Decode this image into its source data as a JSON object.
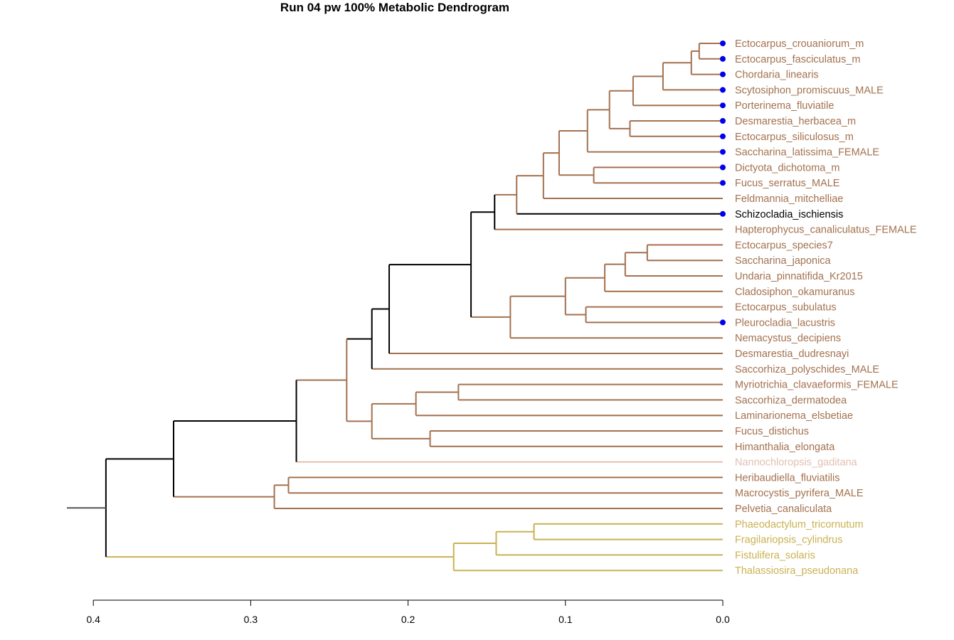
{
  "title": "Run 04 pw 100%  Metabolic Dendrogram",
  "colors": {
    "default": "#a3714f",
    "backbone": "#000000",
    "diatom": "#c9b253",
    "nanno": "#e3bfb1",
    "marker": "#0000ee"
  },
  "axis": {
    "ticks": [
      {
        "value": 0.4,
        "label": "0.4"
      },
      {
        "value": 0.3,
        "label": "0.3"
      },
      {
        "value": 0.2,
        "label": "0.2"
      },
      {
        "value": 0.1,
        "label": "0.1"
      },
      {
        "value": 0.0,
        "label": "0.0"
      }
    ]
  },
  "leaves": [
    {
      "label": "Ectocarpus_crouaniorum_m",
      "color": "default",
      "marker": true
    },
    {
      "label": "Ectocarpus_fasciculatus_m",
      "color": "default",
      "marker": true
    },
    {
      "label": "Chordaria_linearis",
      "color": "default",
      "marker": true
    },
    {
      "label": "Scytosiphon_promiscuus_MALE",
      "color": "default",
      "marker": true
    },
    {
      "label": "Porterinema_fluviatile",
      "color": "default",
      "marker": true
    },
    {
      "label": "Desmarestia_herbacea_m",
      "color": "default",
      "marker": true
    },
    {
      "label": "Ectocarpus_siliculosus_m",
      "color": "default",
      "marker": true
    },
    {
      "label": "Saccharina_latissima_FEMALE",
      "color": "default",
      "marker": true
    },
    {
      "label": "Dictyota_dichotoma_m",
      "color": "default",
      "marker": true
    },
    {
      "label": "Fucus_serratus_MALE",
      "color": "default",
      "marker": true
    },
    {
      "label": "Feldmannia_mitchelliae",
      "color": "default",
      "marker": false
    },
    {
      "label": "Schizocladia_ischiensis",
      "color": "backbone",
      "marker": true
    },
    {
      "label": "Hapterophycus_canaliculatus_FEMALE",
      "color": "default",
      "marker": false
    },
    {
      "label": "Ectocarpus_species7",
      "color": "default",
      "marker": false
    },
    {
      "label": "Saccharina_japonica",
      "color": "default",
      "marker": false
    },
    {
      "label": "Undaria_pinnatifida_Kr2015",
      "color": "default",
      "marker": false
    },
    {
      "label": "Cladosiphon_okamuranus",
      "color": "default",
      "marker": false
    },
    {
      "label": "Ectocarpus_subulatus",
      "color": "default",
      "marker": false
    },
    {
      "label": "Pleurocladia_lacustris",
      "color": "default",
      "marker": true
    },
    {
      "label": "Nemacystus_decipiens",
      "color": "default",
      "marker": false
    },
    {
      "label": "Desmarestia_dudresnayi",
      "color": "default",
      "marker": false
    },
    {
      "label": "Saccorhiza_polyschides_MALE",
      "color": "default",
      "marker": false
    },
    {
      "label": "Myriotrichia_clavaeformis_FEMALE",
      "color": "default",
      "marker": false
    },
    {
      "label": "Saccorhiza_dermatodea",
      "color": "default",
      "marker": false
    },
    {
      "label": "Laminarionema_elsbetiae",
      "color": "default",
      "marker": false
    },
    {
      "label": "Fucus_distichus",
      "color": "default",
      "marker": false
    },
    {
      "label": "Himanthalia_elongata",
      "color": "default",
      "marker": false
    },
    {
      "label": "Nannochloropsis_gaditana",
      "color": "nanno",
      "marker": false
    },
    {
      "label": "Heribaudiella_fluviatilis",
      "color": "default",
      "marker": false
    },
    {
      "label": "Macrocystis_pyrifera_MALE",
      "color": "default",
      "marker": false
    },
    {
      "label": "Pelvetia_canaliculata",
      "color": "default",
      "marker": false
    },
    {
      "label": "Phaeodactylum_tricornutum",
      "color": "diatom",
      "marker": false
    },
    {
      "label": "Fragilariopsis_cylindrus",
      "color": "diatom",
      "marker": false
    },
    {
      "label": "Fistulifera_solaris",
      "color": "diatom",
      "marker": false
    },
    {
      "label": "Thalassiosira_pseudonana",
      "color": "diatom",
      "marker": false
    }
  ],
  "tree": {
    "h": 0.392,
    "color": "backbone",
    "children": [
      {
        "h": 0.349,
        "color": "backbone",
        "children": [
          {
            "h": 0.271,
            "color": "backbone",
            "children": [
              {
                "h": 0.239,
                "color": "default",
                "children": [
                  {
                    "h": 0.223,
                    "color": "backbone",
                    "children": [
                      {
                        "h": 0.212,
                        "color": "backbone",
                        "children": [
                          {
                            "h": 0.16,
                            "color": "backbone",
                            "children": [
                              {
                                "h": 0.145,
                                "color": "backbone",
                                "children": [
                                  {
                                    "h": 0.131,
                                    "color": "default",
                                    "children": [
                                      {
                                        "h": 0.114,
                                        "color": "default",
                                        "children": [
                                          {
                                            "h": 0.104,
                                            "color": "default",
                                            "children": [
                                              {
                                                "h": 0.086,
                                                "color": "default",
                                                "children": [
                                                  {
                                                    "h": 0.072,
                                                    "color": "default",
                                                    "children": [
                                                      {
                                                        "h": 0.057,
                                                        "color": "default",
                                                        "children": [
                                                          {
                                                            "h": 0.038,
                                                            "color": "default",
                                                            "children": [
                                                              {
                                                                "h": 0.02,
                                                                "color": "default",
                                                                "children": [
                                                                  {
                                                                    "h": 0.015,
                                                                    "color": "default",
                                                                    "children": [
                                                                      {
                                                                        "leaf": 0
                                                                      },
                                                                      {
                                                                        "leaf": 1
                                                                      }
                                                                    ]
                                                                  },
                                                                  {
                                                                    "leaf": 2
                                                                  }
                                                                ]
                                                              },
                                                              {
                                                                "leaf": 3
                                                              }
                                                            ]
                                                          },
                                                          {
                                                            "leaf": 4
                                                          }
                                                        ]
                                                      },
                                                      {
                                                        "h": 0.059,
                                                        "color": "default",
                                                        "children": [
                                                          {
                                                            "leaf": 5
                                                          },
                                                          {
                                                            "leaf": 6
                                                          }
                                                        ]
                                                      }
                                                    ]
                                                  },
                                                  {
                                                    "leaf": 7
                                                  }
                                                ]
                                              },
                                              {
                                                "h": 0.082,
                                                "color": "default",
                                                "children": [
                                                  {
                                                    "leaf": 8
                                                  },
                                                  {
                                                    "leaf": 9
                                                  }
                                                ]
                                              }
                                            ]
                                          },
                                          {
                                            "leaf": 10
                                          }
                                        ]
                                      },
                                      {
                                        "leaf": 11
                                      }
                                    ]
                                  },
                                  {
                                    "leaf": 12
                                  }
                                ]
                              },
                              {
                                "h": 0.135,
                                "color": "default",
                                "children": [
                                  {
                                    "h": 0.1,
                                    "color": "default",
                                    "children": [
                                      {
                                        "h": 0.075,
                                        "color": "default",
                                        "children": [
                                          {
                                            "h": 0.062,
                                            "color": "default",
                                            "children": [
                                              {
                                                "h": 0.048,
                                                "color": "default",
                                                "children": [
                                                  {
                                                    "leaf": 13
                                                  },
                                                  {
                                                    "leaf": 14
                                                  }
                                                ]
                                              },
                                              {
                                                "leaf": 15
                                              }
                                            ]
                                          },
                                          {
                                            "leaf": 16
                                          }
                                        ]
                                      },
                                      {
                                        "h": 0.087,
                                        "color": "default",
                                        "children": [
                                          {
                                            "leaf": 17
                                          },
                                          {
                                            "leaf": 18
                                          }
                                        ]
                                      }
                                    ]
                                  },
                                  {
                                    "leaf": 19
                                  }
                                ]
                              }
                            ]
                          },
                          {
                            "leaf": 20
                          }
                        ]
                      },
                      {
                        "leaf": 21
                      }
                    ]
                  },
                  {
                    "h": 0.223,
                    "color": "default",
                    "children": [
                      {
                        "h": 0.195,
                        "color": "default",
                        "children": [
                          {
                            "h": 0.168,
                            "color": "default",
                            "children": [
                              {
                                "leaf": 22
                              },
                              {
                                "leaf": 23
                              }
                            ]
                          },
                          {
                            "leaf": 24
                          }
                        ]
                      },
                      {
                        "h": 0.186,
                        "color": "default",
                        "children": [
                          {
                            "leaf": 25
                          },
                          {
                            "leaf": 26
                          }
                        ]
                      }
                    ]
                  }
                ]
              },
              {
                "leaf": 27
              }
            ]
          },
          {
            "h": 0.285,
            "color": "default",
            "children": [
              {
                "h": 0.276,
                "color": "default",
                "children": [
                  {
                    "leaf": 28
                  },
                  {
                    "leaf": 29
                  }
                ]
              },
              {
                "leaf": 30
              }
            ]
          }
        ]
      },
      {
        "h": 0.171,
        "color": "diatom",
        "children": [
          {
            "h": 0.144,
            "color": "diatom",
            "children": [
              {
                "h": 0.12,
                "color": "diatom",
                "children": [
                  {
                    "leaf": 31
                  },
                  {
                    "leaf": 32
                  }
                ]
              },
              {
                "leaf": 33
              }
            ]
          },
          {
            "leaf": 34
          }
        ]
      }
    ]
  }
}
